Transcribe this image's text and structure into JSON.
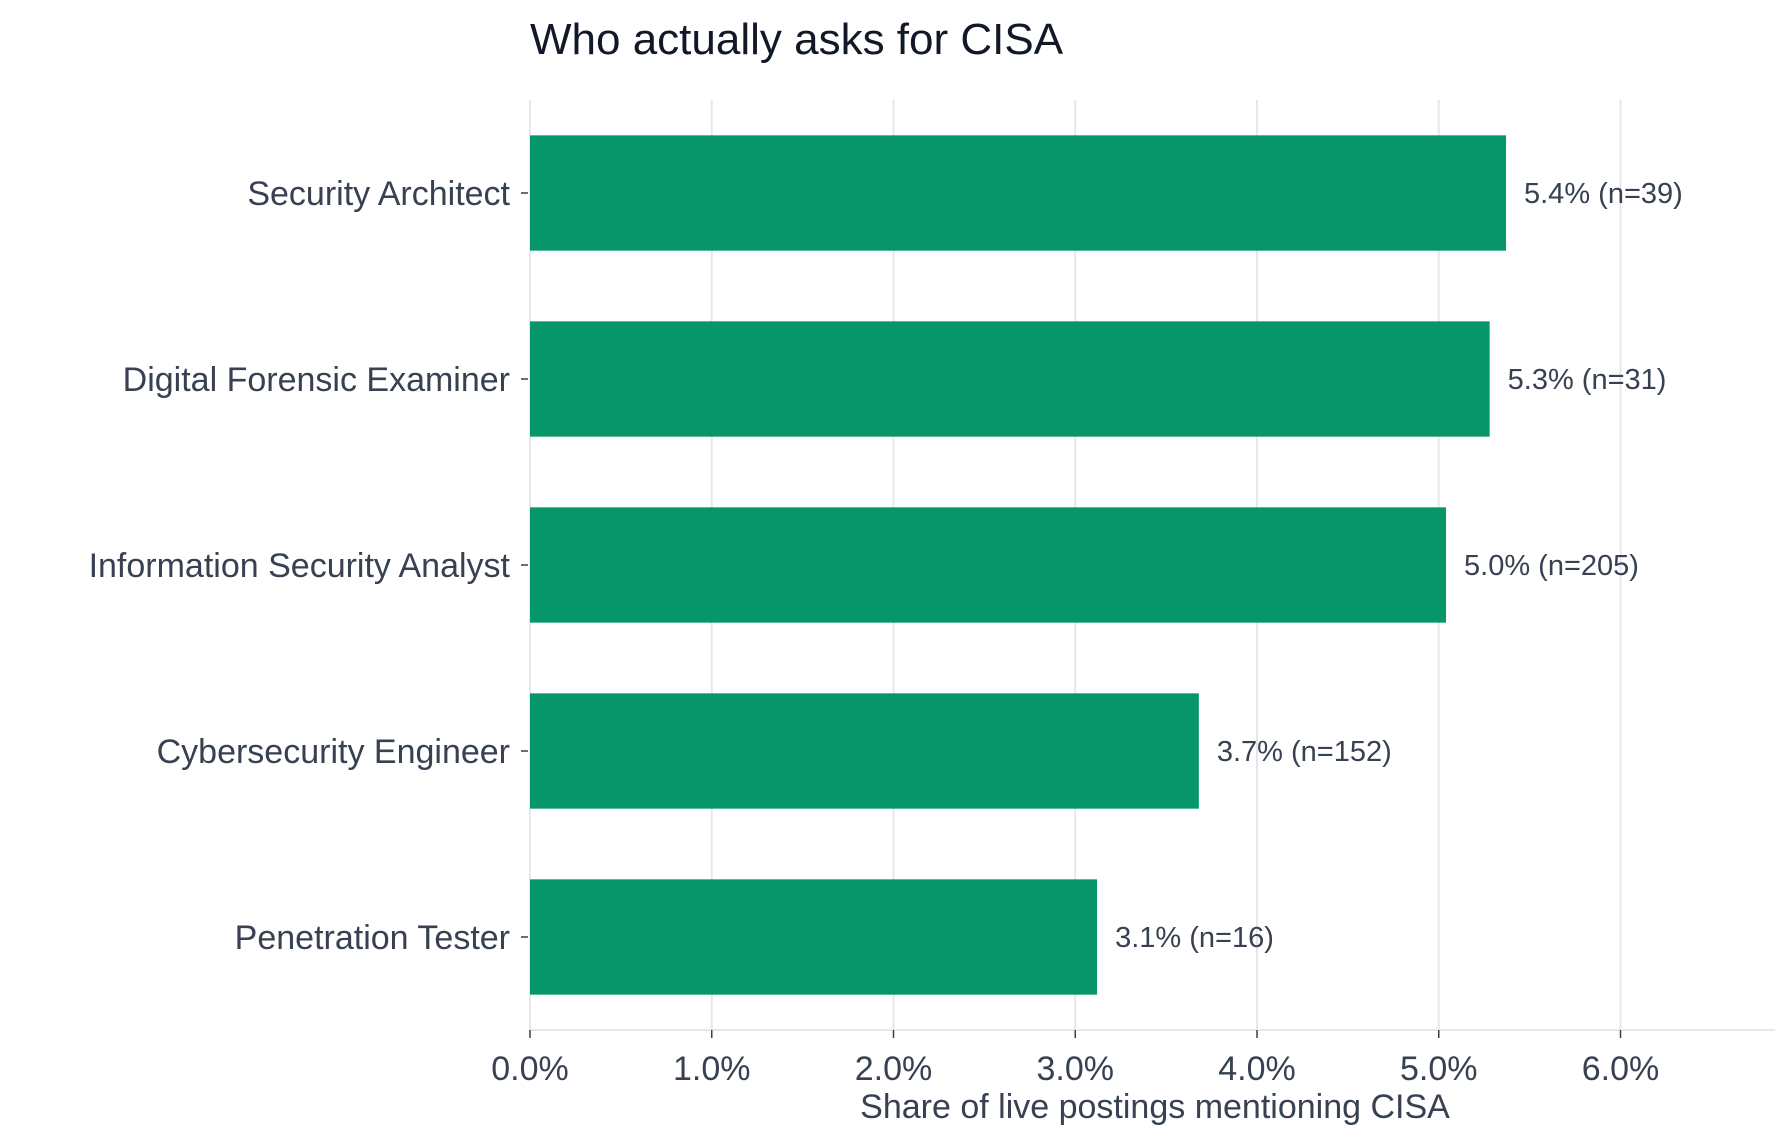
{
  "chart_data": {
    "type": "bar",
    "orientation": "horizontal",
    "title": "Who actually asks for CISA",
    "xlabel": "Share of live postings mentioning CISA",
    "ylabel": "",
    "xlim": [
      0,
      6.85
    ],
    "xticks": [
      0,
      1,
      2,
      3,
      4,
      5,
      6
    ],
    "xtick_labels": [
      "0.0%",
      "1.0%",
      "2.0%",
      "3.0%",
      "4.0%",
      "5.0%",
      "6.0%"
    ],
    "categories": [
      "Security Architect",
      "Digital Forensic Examiner",
      "Information Security Analyst",
      "Cybersecurity Engineer",
      "Penetration Tester"
    ],
    "values": [
      5.37,
      5.28,
      5.04,
      3.68,
      3.12
    ],
    "value_labels": [
      "5.4%  (n=39)",
      "5.3%  (n=31)",
      "5.0%  (n=205)",
      "3.7%  (n=152)",
      "3.1%  (n=16)"
    ],
    "bar_color": "#069669",
    "grid": "vertical",
    "legend": "none"
  }
}
